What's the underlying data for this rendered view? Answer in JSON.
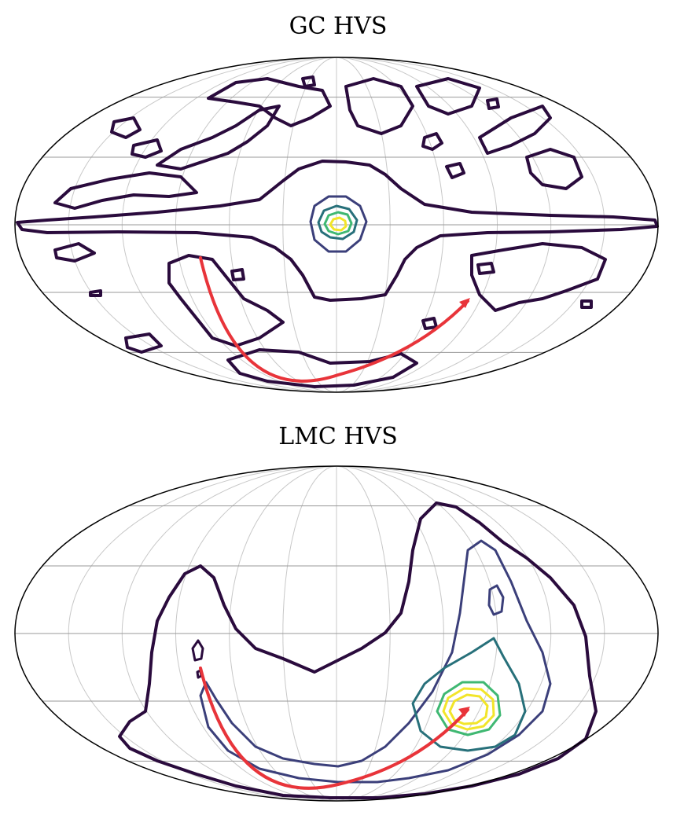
{
  "chart_data": [
    {
      "type": "contour",
      "projection": "mollweide",
      "title": "GC HVS",
      "grid": true,
      "colors": {
        "level1": "#2a0b3d",
        "level2": "#3b3f7a",
        "level3": "#27707a",
        "level4": "#3fb872",
        "level5": "#f2e52a",
        "arrow": "#e8343a"
      },
      "arrow": {
        "from": {
          "lon": 60,
          "lat": -18
        },
        "via": {
          "lon": 0,
          "lat": -65
        },
        "to": {
          "lon": -60,
          "lat": -30
        }
      }
    },
    {
      "type": "contour",
      "projection": "mollweide",
      "title": "LMC HVS",
      "grid": true,
      "colors": {
        "level1": "#2a0b3d",
        "level2": "#3b3f7a",
        "level3": "#27707a",
        "level4": "#3fb872",
        "level5": "#f2e52a",
        "arrow": "#e8343a"
      },
      "arrow": {
        "from": {
          "lon": 60,
          "lat": -15
        },
        "via": {
          "lon": 0,
          "lat": -70
        },
        "to": {
          "lon": -60,
          "lat": -33
        }
      }
    }
  ]
}
